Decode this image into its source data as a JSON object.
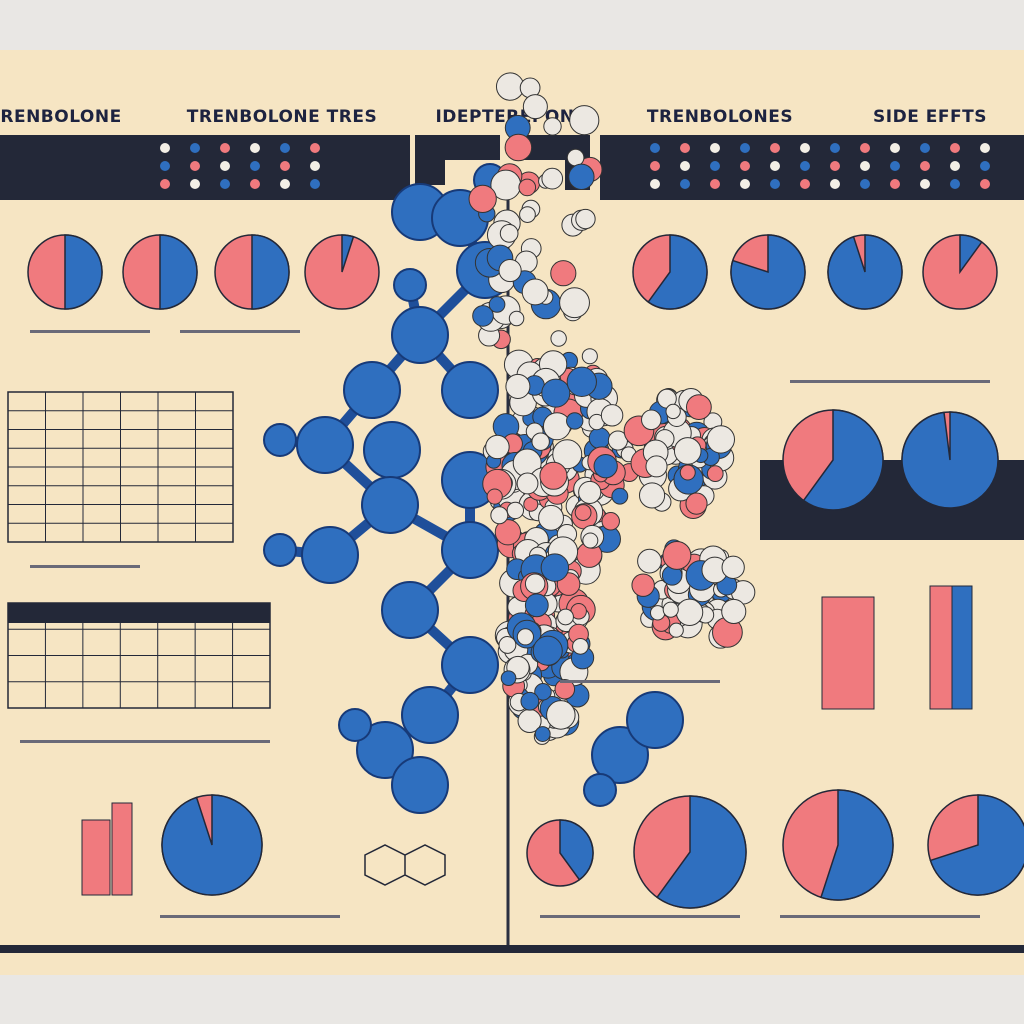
{
  "header": {
    "titles": [
      "TRENBOLONE",
      "TRENBOLONE TRES",
      "IDEPTEREPON",
      "TRENBOLONES",
      "SIDE EFFTS"
    ]
  }
}
